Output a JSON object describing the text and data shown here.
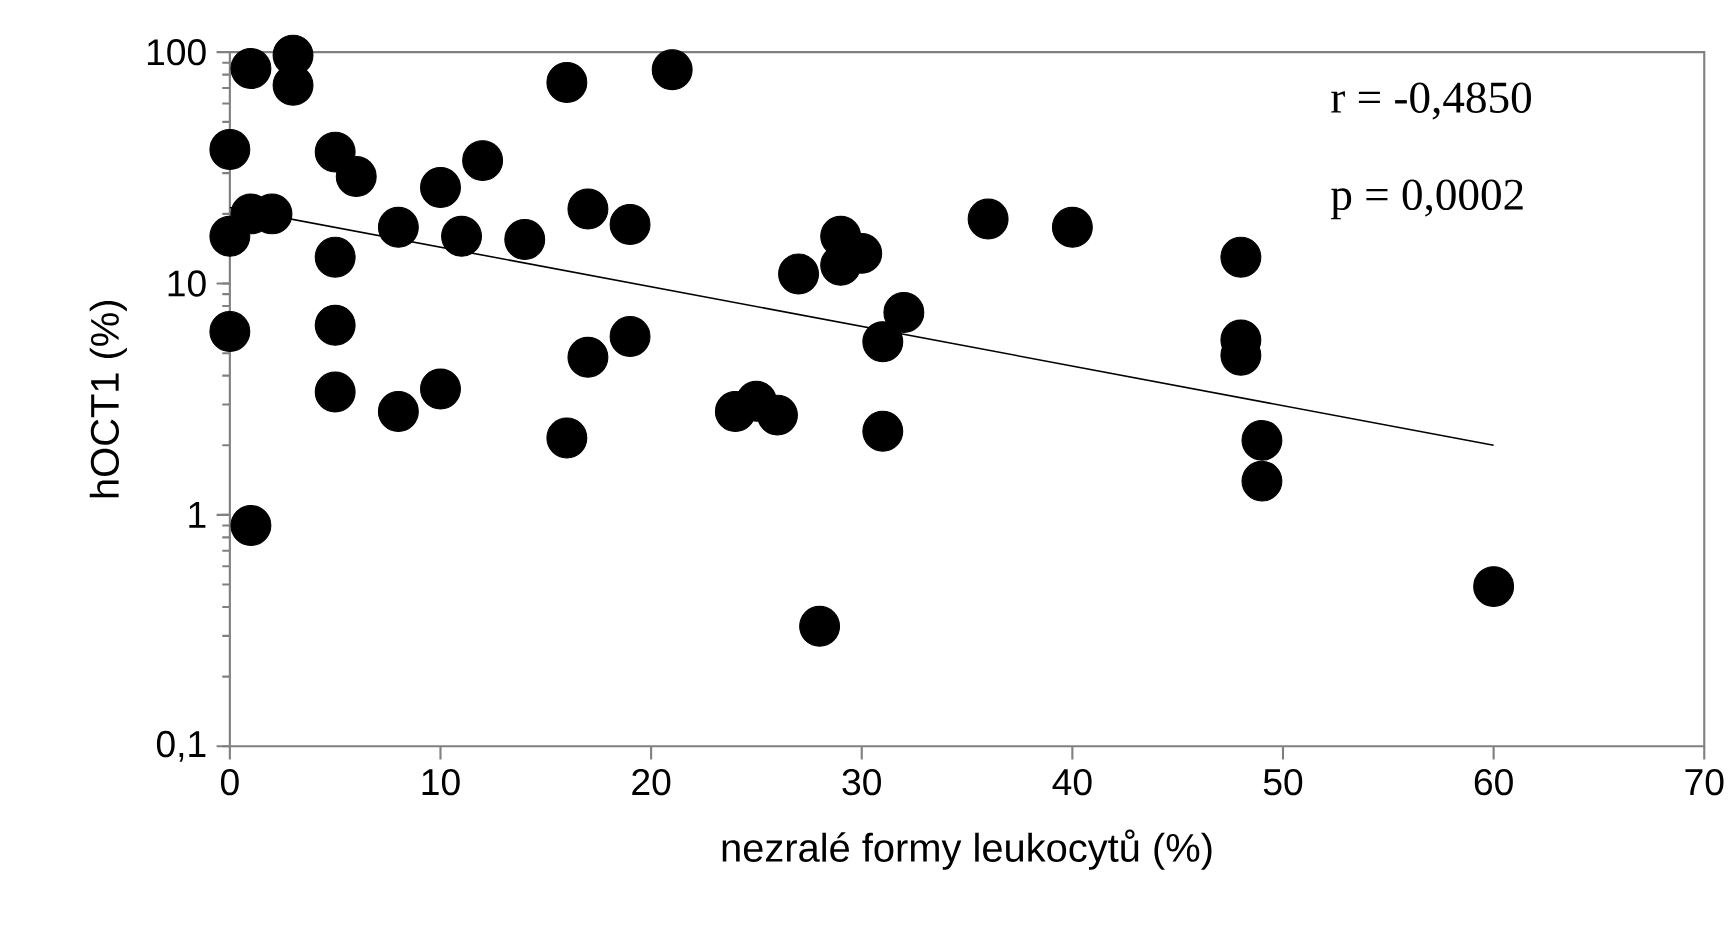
{
  "chart_data": {
    "type": "scatter",
    "xlabel": "nezralé formy leukocytů (%)",
    "ylabel": "hOCT1 (%)",
    "log": "y",
    "xlim": [
      0,
      70
    ],
    "ylim": [
      0.1,
      100
    ],
    "xticks": [
      0,
      10,
      20,
      30,
      40,
      50,
      60,
      70
    ],
    "yticks": [
      {
        "value": 0.1,
        "label": "0,1"
      },
      1,
      10,
      100
    ],
    "grid": false,
    "annotations": [
      "r = -0,4850",
      "p = 0,0002"
    ],
    "series": [
      {
        "color": "#000000",
        "marker": "circle",
        "x": [
          0,
          0,
          0,
          1,
          1,
          1,
          2,
          3,
          3,
          5,
          5,
          5,
          5,
          6,
          8,
          8,
          10,
          10,
          11,
          12,
          14,
          16,
          16,
          17,
          17,
          19,
          19,
          21,
          24,
          25,
          26,
          27,
          28,
          29,
          29,
          30,
          31,
          31,
          32,
          36,
          40,
          48,
          48,
          48,
          49,
          49,
          60
        ],
        "values": [
          38,
          16,
          6.2,
          85,
          20,
          0.9,
          20,
          97,
          72,
          37,
          13,
          6.6,
          3.4,
          29,
          17.5,
          2.8,
          26,
          3.5,
          16,
          34,
          15.5,
          74,
          2.15,
          21,
          4.8,
          18,
          5.9,
          84,
          2.8,
          3.1,
          2.7,
          11,
          0.33,
          16,
          12,
          13.5,
          5.6,
          2.3,
          7.5,
          19,
          17.5,
          13,
          5.7,
          4.9,
          2.1,
          1.4,
          0.49
        ]
      },
      {
        "type": "line",
        "color": "#000000",
        "marker": "none",
        "x": [
          0,
          60
        ],
        "values": [
          21.3,
          2
        ]
      }
    ]
  }
}
